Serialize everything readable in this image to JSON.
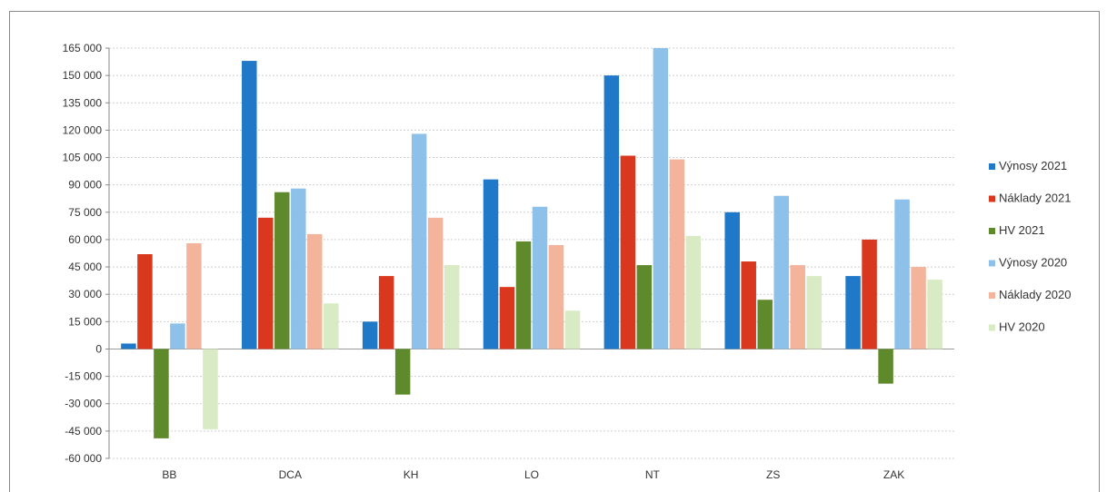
{
  "chart_data": {
    "type": "bar",
    "categories": [
      "BB",
      "DCA",
      "KH",
      "LO",
      "NT",
      "ZS",
      "ZAK"
    ],
    "series": [
      {
        "name": "Výnosy 2021",
        "color": "#1f78c8",
        "values": [
          3000,
          158000,
          15000,
          93000,
          150000,
          75000,
          40000
        ]
      },
      {
        "name": "Náklady 2021",
        "color": "#d9381e",
        "values": [
          52000,
          72000,
          40000,
          34000,
          106000,
          48000,
          60000
        ]
      },
      {
        "name": "HV 2021",
        "color": "#5f8a2b",
        "values": [
          -49000,
          86000,
          -25000,
          59000,
          46000,
          27000,
          -19000
        ]
      },
      {
        "name": "Výnosy 2020",
        "color": "#8ec1ea",
        "values": [
          14000,
          88000,
          118000,
          78000,
          165000,
          84000,
          82000
        ]
      },
      {
        "name": "Náklady 2020",
        "color": "#f3b49b",
        "values": [
          58000,
          63000,
          72000,
          57000,
          104000,
          46000,
          45000
        ]
      },
      {
        "name": "HV 2020",
        "color": "#d8ebc4",
        "values": [
          -44000,
          25000,
          46000,
          21000,
          62000,
          40000,
          38000
        ]
      }
    ],
    "y_ticks": [
      "165 000",
      "150 000",
      "135 000",
      "120 000",
      "105 000",
      "90 000",
      "75 000",
      "60 000",
      "45 000",
      "30 000",
      "15 000",
      "0",
      "-15 000",
      "-30 000",
      "-45 000",
      "-60 000"
    ],
    "y_tick_values": [
      165000,
      150000,
      135000,
      120000,
      105000,
      90000,
      75000,
      60000,
      45000,
      30000,
      15000,
      0,
      -15000,
      -30000,
      -45000,
      -60000
    ],
    "ylim": [
      -60000,
      165000
    ],
    "grid": true,
    "legend_position": "right"
  }
}
